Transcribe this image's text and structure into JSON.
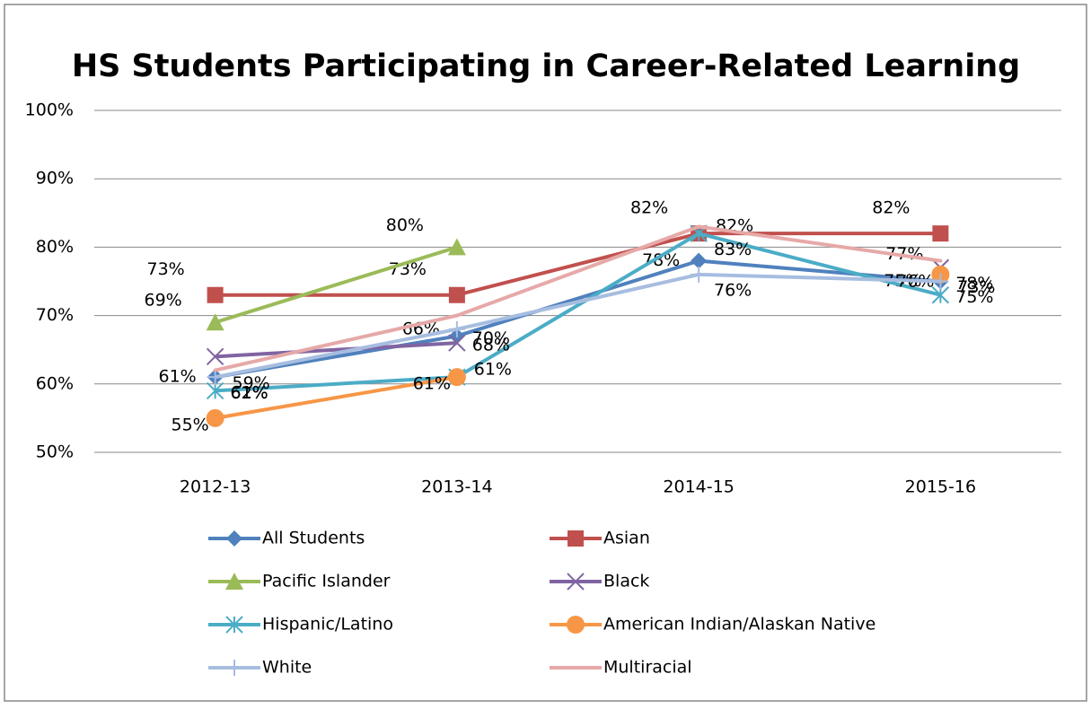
{
  "chart_data": {
    "type": "line",
    "title": "HS Students Participating in Career-Related Learning",
    "categories": [
      "2012-13",
      "2013-14",
      "2014-15",
      "2015-16"
    ],
    "ylim": [
      50,
      100
    ],
    "yticks": [
      {
        "value": 50,
        "label": "50%"
      },
      {
        "value": 60,
        "label": "60%"
      },
      {
        "value": 70,
        "label": "70%"
      },
      {
        "value": 80,
        "label": "80%"
      },
      {
        "value": 90,
        "label": "90%"
      },
      {
        "value": 100,
        "label": "100%"
      }
    ],
    "grid": true,
    "legend": "bottom",
    "series": [
      {
        "name": "All Students",
        "color": "#4f81bd",
        "marker": "diamond",
        "values": [
          61,
          67,
          78,
          75
        ],
        "value_labels": [
          "61%",
          null,
          "78%",
          "75%"
        ]
      },
      {
        "name": "Asian",
        "color": "#c0504d",
        "marker": "square",
        "values": [
          73,
          73,
          82,
          82
        ],
        "value_labels": [
          "73%",
          "73%",
          "82%",
          "82%"
        ]
      },
      {
        "name": "Pacific Islander",
        "color": "#9bbb59",
        "marker": "triangle",
        "values": [
          69,
          80,
          null,
          null
        ],
        "value_labels": [
          "69%",
          "80%",
          null,
          null
        ]
      },
      {
        "name": "Black",
        "color": "#8064a2",
        "marker": "x",
        "values": [
          64,
          66,
          null,
          77
        ],
        "value_labels": [
          null,
          "66%",
          null,
          "77%"
        ]
      },
      {
        "name": "Hispanic/Latino",
        "color": "#4bacc6",
        "marker": "star",
        "values": [
          59,
          61,
          82,
          73
        ],
        "value_labels": [
          "59%",
          "61%",
          "82%",
          "73%"
        ]
      },
      {
        "name": "American Indian/Alaskan Native",
        "color": "#f79646",
        "marker": "circle",
        "values": [
          55,
          61,
          null,
          76
        ],
        "value_labels": [
          "55%",
          "61%",
          null,
          "76%"
        ]
      },
      {
        "name": "White",
        "color": "#a7bde0",
        "marker": "plus",
        "values": [
          61,
          68,
          76,
          75
        ],
        "value_labels": [
          "61%",
          "68%",
          "76%",
          "75%"
        ]
      },
      {
        "name": "Multiracial",
        "color": "#e6a9a8",
        "marker": "none",
        "values": [
          62,
          70,
          83,
          78
        ],
        "value_labels": [
          "62%",
          "70%",
          "83%",
          "78%"
        ]
      }
    ]
  }
}
